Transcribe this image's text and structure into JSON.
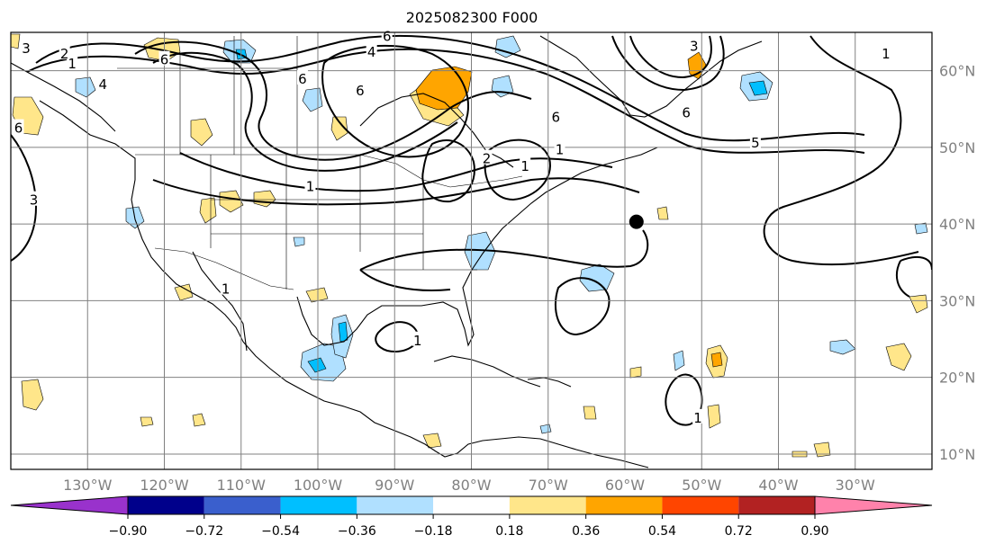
{
  "title": "2025082300 F000",
  "map": {
    "lon_range": [
      -140,
      -20
    ],
    "lat_range": [
      8,
      65
    ],
    "lon_ticks": [
      {
        "value": -130,
        "label": "130°W"
      },
      {
        "value": -120,
        "label": "120°W"
      },
      {
        "value": -110,
        "label": "110°W"
      },
      {
        "value": -100,
        "label": "100°W"
      },
      {
        "value": -90,
        "label": "90°W"
      },
      {
        "value": -80,
        "label": "80°W"
      },
      {
        "value": -70,
        "label": "70°W"
      },
      {
        "value": -60,
        "label": "60°W"
      },
      {
        "value": -50,
        "label": "50°W"
      },
      {
        "value": -40,
        "label": "40°W"
      },
      {
        "value": -30,
        "label": "30°W"
      }
    ],
    "lat_ticks": [
      {
        "value": 10,
        "label": "10°N"
      },
      {
        "value": 20,
        "label": "20°N"
      },
      {
        "value": 30,
        "label": "30°N"
      },
      {
        "value": 40,
        "label": "40°N"
      },
      {
        "value": 50,
        "label": "50°N"
      },
      {
        "value": 60,
        "label": "60°N"
      }
    ],
    "marker": {
      "lon": -58.5,
      "lat": 40.3
    },
    "contour_labels": [
      {
        "text": "1",
        "lon": -101,
        "lat": 44.9
      },
      {
        "text": "1",
        "lon": -68.5,
        "lat": 49.7
      },
      {
        "text": "1",
        "lon": -73,
        "lat": 47.5
      },
      {
        "text": "1",
        "lon": -26,
        "lat": 62.2
      },
      {
        "text": "1",
        "lon": -132,
        "lat": 60.9
      },
      {
        "text": "1",
        "lon": -112,
        "lat": 31.5
      },
      {
        "text": "1",
        "lon": -87,
        "lat": 24.8
      },
      {
        "text": "1",
        "lon": -50.5,
        "lat": 14.7
      },
      {
        "text": "2",
        "lon": -133,
        "lat": 62.2
      },
      {
        "text": "2",
        "lon": -78,
        "lat": 48.5
      },
      {
        "text": "3",
        "lon": -138,
        "lat": 62.9
      },
      {
        "text": "3",
        "lon": -137,
        "lat": 43.1
      },
      {
        "text": "3",
        "lon": -51,
        "lat": 63.2
      },
      {
        "text": "4",
        "lon": -128,
        "lat": 58.2
      },
      {
        "text": "4",
        "lon": -93,
        "lat": 62.4
      },
      {
        "text": "5",
        "lon": -43,
        "lat": 50.6
      },
      {
        "text": "6",
        "lon": -102,
        "lat": 58.9
      },
      {
        "text": "6",
        "lon": -94.5,
        "lat": 57.4
      },
      {
        "text": "6",
        "lon": -69,
        "lat": 53.9
      },
      {
        "text": "6",
        "lon": -52,
        "lat": 54.5
      },
      {
        "text": "6",
        "lon": -120,
        "lat": 61.4
      },
      {
        "text": "6",
        "lon": -139,
        "lat": 52.5
      },
      {
        "text": "6",
        "lon": -91,
        "lat": 64.5
      }
    ]
  },
  "colorbar": {
    "colors": [
      "#9932cc",
      "#00008b",
      "#3a5fcd",
      "#00bfff",
      "#b0e0ff",
      "#ffffff",
      "#ffe68a",
      "#ffa500",
      "#ff4500",
      "#b22222",
      "#ff82ab"
    ],
    "ticks": [
      "−0.90",
      "−0.72",
      "−0.54",
      "−0.36",
      "−0.18",
      "0.18",
      "0.36",
      "0.54",
      "0.72",
      "0.90"
    ]
  },
  "shading_colors": {
    "light_blue": "#b0e0ff",
    "blue": "#00bfff",
    "light_yellow": "#ffe68a",
    "orange": "#ffa500"
  }
}
